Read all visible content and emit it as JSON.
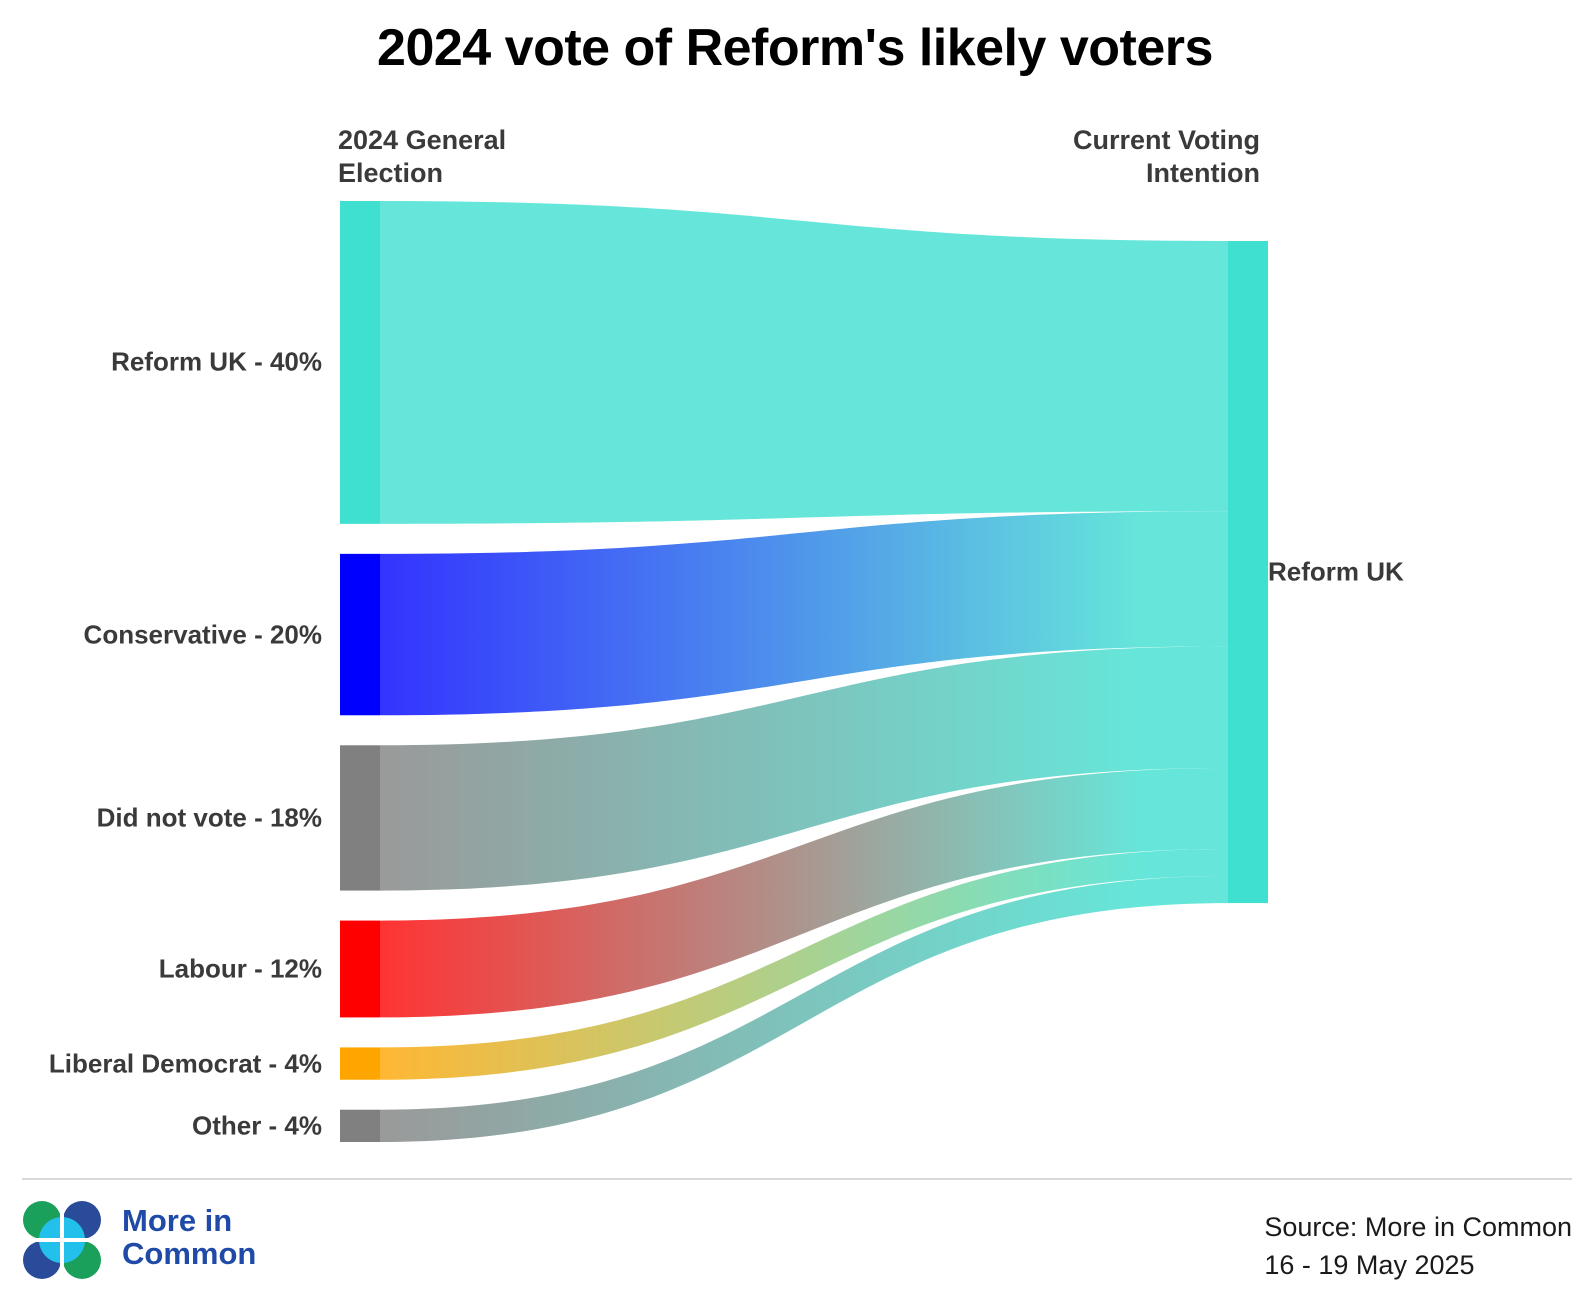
{
  "title": "2024 vote of Reform's likely voters",
  "columns": {
    "source": "2024 General Election",
    "source_lines": [
      "2024 General",
      "Election"
    ],
    "target": "Current Voting Intention",
    "target_lines": [
      "Current Voting",
      "Intention"
    ]
  },
  "chart_data": {
    "type": "sankey",
    "title": "2024 vote of Reform's likely voters",
    "source_column": "2024 General Election",
    "target_column": "Current Voting Intention",
    "target_node": {
      "name": "Reform UK",
      "label": "Reform UK",
      "color": "#40e0d0"
    },
    "source_nodes": [
      {
        "name": "Reform UK",
        "value": 40,
        "label": "Reform UK - 40%",
        "color": "#40e0d0"
      },
      {
        "name": "Conservative",
        "value": 20,
        "label": "Conservative - 20%",
        "color": "#0000ff"
      },
      {
        "name": "Did not vote",
        "value": 18,
        "label": "Did not vote - 18%",
        "color": "#808080"
      },
      {
        "name": "Labour",
        "value": 12,
        "label": "Labour - 12%",
        "color": "#ff0000"
      },
      {
        "name": "Liberal Democrat",
        "value": 4,
        "label": "Liberal Democrat - 4%",
        "color": "#ffa500"
      },
      {
        "name": "Other",
        "value": 4,
        "label": "Other - 4%",
        "color": "#808080"
      }
    ],
    "flows": [
      {
        "from": "Reform UK",
        "to": "Reform UK",
        "value": 40
      },
      {
        "from": "Conservative",
        "to": "Reform UK",
        "value": 20
      },
      {
        "from": "Did not vote",
        "to": "Reform UK",
        "value": 18
      },
      {
        "from": "Labour",
        "to": "Reform UK",
        "value": 12
      },
      {
        "from": "Liberal Democrat",
        "to": "Reform UK",
        "value": 4
      },
      {
        "from": "Other",
        "to": "Reform UK",
        "value": 4
      }
    ],
    "unit": "%"
  },
  "footer": {
    "brand_line1": "More in",
    "brand_line2": "Common",
    "source_line1": "Source: More in Common",
    "source_line2": "16 - 19 May 2025"
  },
  "colors": {
    "title": "#000000",
    "label": "#3a3a3a",
    "brand": "#1f4aa8",
    "logo_green": "#1aa05a",
    "logo_navy": "#2a4a9a",
    "logo_sky": "#22c0ea"
  },
  "icons": [
    "more-in-common-logo-icon"
  ]
}
